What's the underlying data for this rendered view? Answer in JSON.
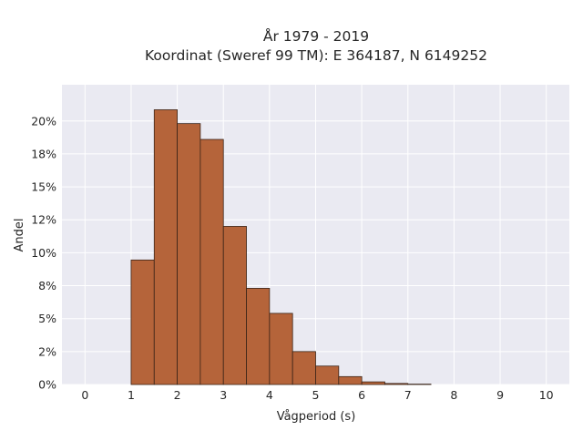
{
  "chart_data": {
    "type": "bar",
    "title_lines": [
      "År 1979 - 2019",
      "Koordinat (Sweref 99 TM): E 364187, N 6149252"
    ],
    "xlabel": "Vågperiod (s)",
    "ylabel": "Andel",
    "bin_width": 0.5,
    "bins": [
      {
        "x0": 1.0,
        "x1": 1.5,
        "value": 0.0945
      },
      {
        "x0": 1.5,
        "x1": 2.0,
        "value": 0.2085
      },
      {
        "x0": 2.0,
        "x1": 2.5,
        "value": 0.198
      },
      {
        "x0": 2.5,
        "x1": 3.0,
        "value": 0.186
      },
      {
        "x0": 3.0,
        "x1": 3.5,
        "value": 0.12
      },
      {
        "x0": 3.5,
        "x1": 4.0,
        "value": 0.073
      },
      {
        "x0": 4.0,
        "x1": 4.5,
        "value": 0.054
      },
      {
        "x0": 4.5,
        "x1": 5.0,
        "value": 0.025
      },
      {
        "x0": 5.0,
        "x1": 5.5,
        "value": 0.014
      },
      {
        "x0": 5.5,
        "x1": 6.0,
        "value": 0.006
      },
      {
        "x0": 6.0,
        "x1": 6.5,
        "value": 0.002
      },
      {
        "x0": 6.5,
        "x1": 7.0,
        "value": 0.0008
      },
      {
        "x0": 7.0,
        "x1": 7.5,
        "value": 0.0003
      }
    ],
    "xlim": [
      -0.5,
      10.5
    ],
    "ylim": [
      0,
      0.2275
    ],
    "x_ticks": [
      0,
      1,
      2,
      3,
      4,
      5,
      6,
      7,
      8,
      9,
      10
    ],
    "y_ticks": [
      0,
      0.025,
      0.05,
      0.075,
      0.1,
      0.125,
      0.15,
      0.175,
      0.2
    ],
    "y_tick_labels": [
      "0%",
      "2%",
      "5%",
      "8%",
      "10%",
      "12%",
      "15%",
      "18%",
      "20%"
    ],
    "grid": true,
    "colors": {
      "bar_fill": "#b5643a",
      "bar_edge": "#3a2418",
      "plot_background": "#eaeaf2",
      "grid": "#ffffff"
    }
  }
}
